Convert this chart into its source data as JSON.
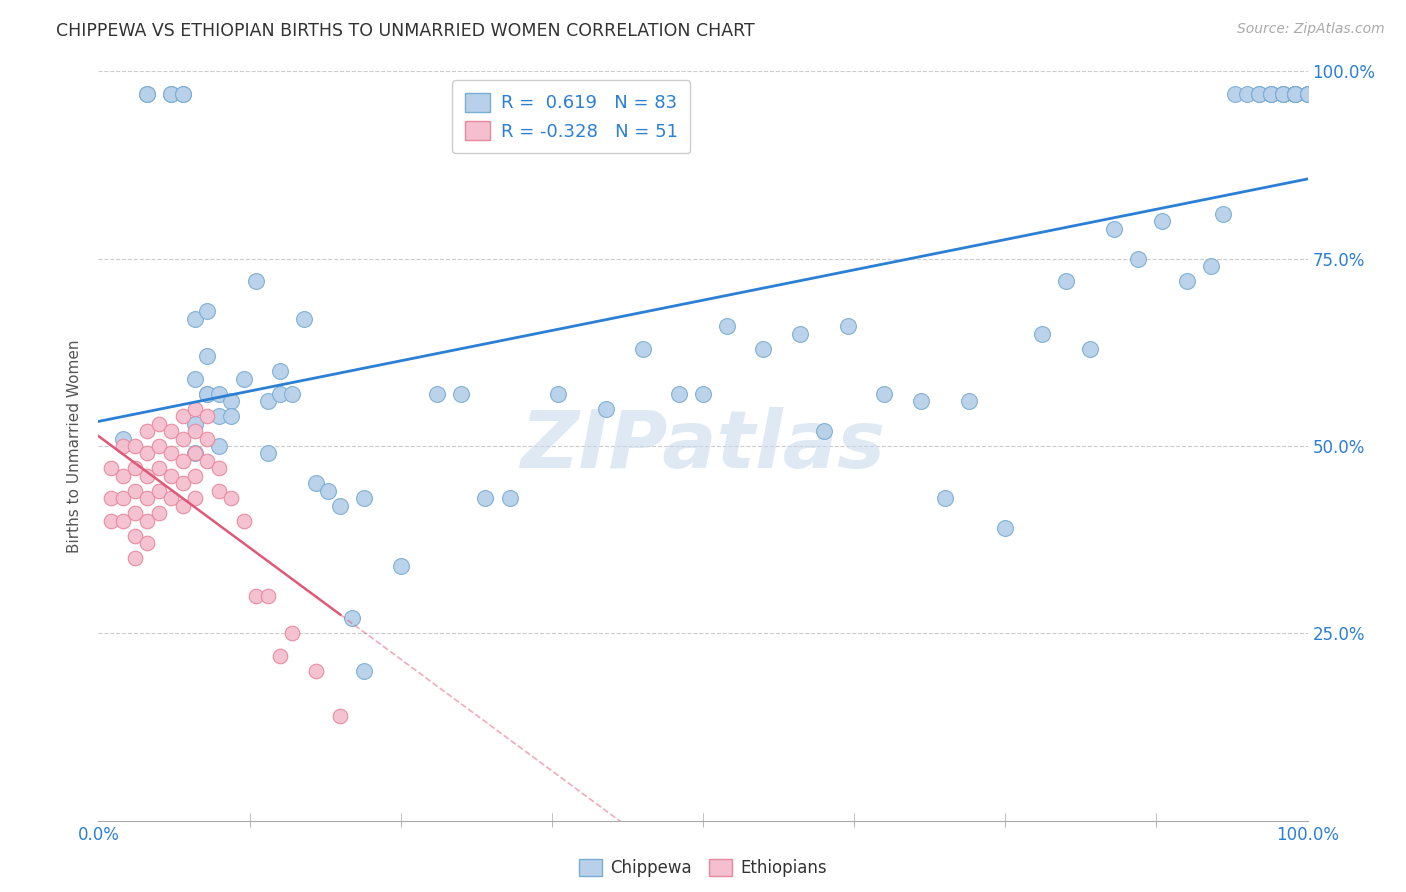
{
  "title": "CHIPPEWA VS ETHIOPIAN BIRTHS TO UNMARRIED WOMEN CORRELATION CHART",
  "source": "Source: ZipAtlas.com",
  "ylabel": "Births to Unmarried Women",
  "legend_chippewa": {
    "R": "0.619",
    "N": "83"
  },
  "legend_ethiopian": {
    "R": "-0.328",
    "N": "51"
  },
  "watermark": "ZIPatlas",
  "chippewa_color": "#b8d0ea",
  "chippewa_edge": "#7aadd4",
  "ethiopian_color": "#f5bfcf",
  "ethiopian_edge": "#e8889e",
  "regression_chippewa_color": "#2b7fd4",
  "regression_ethiopian_color": "#e05878",
  "background_color": "#ffffff",
  "grid_color": "#cccccc",
  "right_ytick_color": "#2b7fd4",
  "chippewa_x": [
    2,
    4,
    4,
    6,
    6,
    7,
    7,
    8,
    8,
    8,
    8,
    9,
    9,
    9,
    9,
    10,
    10,
    10,
    11,
    11,
    12,
    13,
    14,
    14,
    15,
    15,
    16,
    17,
    18,
    19,
    20,
    21,
    22,
    22,
    25,
    28,
    30,
    32,
    34,
    38,
    42,
    45,
    48,
    50,
    52,
    55,
    58,
    60,
    62,
    65,
    68,
    70,
    72,
    75,
    78,
    80,
    82,
    84,
    86,
    88,
    90,
    92,
    93,
    94,
    95,
    96,
    96,
    97,
    97,
    97,
    98,
    98,
    98,
    99,
    99,
    99,
    99,
    99,
    100,
    100,
    100,
    100,
    100
  ],
  "chippewa_y": [
    51,
    97,
    97,
    97,
    97,
    97,
    97,
    67,
    59,
    53,
    49,
    68,
    62,
    57,
    57,
    57,
    54,
    50,
    56,
    54,
    59,
    72,
    56,
    49,
    60,
    57,
    57,
    67,
    45,
    44,
    42,
    27,
    20,
    43,
    34,
    57,
    57,
    43,
    43,
    57,
    55,
    63,
    57,
    57,
    66,
    63,
    65,
    52,
    66,
    57,
    56,
    43,
    56,
    39,
    65,
    72,
    63,
    79,
    75,
    80,
    72,
    74,
    81,
    97,
    97,
    97,
    97,
    97,
    97,
    97,
    97,
    97,
    97,
    97,
    97,
    97,
    97,
    97,
    97,
    97,
    97,
    97,
    97
  ],
  "ethiopian_x": [
    1,
    1,
    1,
    2,
    2,
    2,
    2,
    3,
    3,
    3,
    3,
    3,
    3,
    4,
    4,
    4,
    4,
    4,
    4,
    5,
    5,
    5,
    5,
    5,
    6,
    6,
    6,
    6,
    7,
    7,
    7,
    7,
    7,
    8,
    8,
    8,
    8,
    8,
    9,
    9,
    9,
    10,
    10,
    11,
    12,
    13,
    14,
    15,
    16,
    18,
    20
  ],
  "ethiopian_y": [
    47,
    43,
    40,
    50,
    46,
    43,
    40,
    50,
    47,
    44,
    41,
    38,
    35,
    52,
    49,
    46,
    43,
    40,
    37,
    53,
    50,
    47,
    44,
    41,
    52,
    49,
    46,
    43,
    54,
    51,
    48,
    45,
    42,
    55,
    52,
    49,
    46,
    43,
    54,
    51,
    48,
    47,
    44,
    43,
    40,
    30,
    30,
    22,
    25,
    20,
    14
  ],
  "xlim": [
    0,
    100
  ],
  "ylim": [
    0,
    100
  ],
  "xticks": [
    0,
    100
  ],
  "yticks": [
    25,
    50,
    75,
    100
  ],
  "ytick_labels": [
    "25.0%",
    "50.0%",
    "75.0%",
    "100.0%"
  ],
  "xtick_labels": [
    "0.0%",
    "100.0%"
  ],
  "extra_xticks": [
    12.5,
    25,
    37.5,
    50,
    62.5,
    75,
    87.5
  ]
}
